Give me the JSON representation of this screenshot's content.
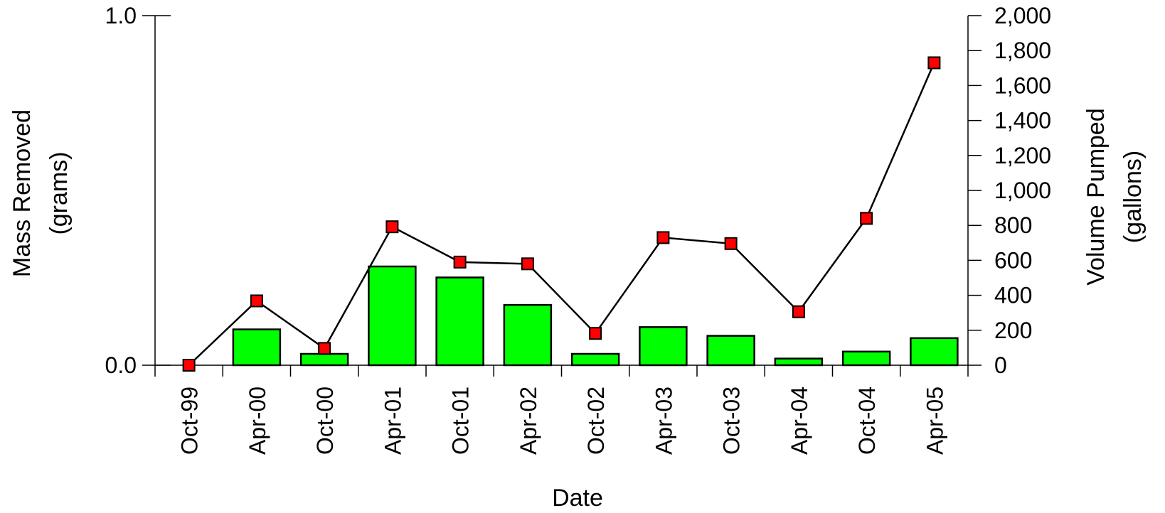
{
  "chart_data": {
    "type": "bar+line",
    "x_label": "Date",
    "categories": [
      "Oct-99",
      "Apr-00",
      "Oct-00",
      "Apr-01",
      "Oct-01",
      "Apr-02",
      "Oct-02",
      "Apr-03",
      "Oct-03",
      "Apr-04",
      "Oct-04",
      "Apr-05"
    ],
    "left_axis": {
      "label_line1": "Mass Removed",
      "label_line2": "(grams)",
      "range": [
        0,
        1
      ],
      "ticks": [
        0,
        1
      ],
      "tick_labels": [
        "0.0",
        "1.0"
      ]
    },
    "right_axis": {
      "label_line1": "Volume Pumped",
      "label_line2": "(gallons)",
      "range": [
        0,
        2000
      ],
      "ticks": [
        0,
        200,
        400,
        600,
        800,
        1000,
        1200,
        1400,
        1600,
        1800,
        2000
      ],
      "tick_labels": [
        "0",
        "200",
        "400",
        "600",
        "800",
        "1,000",
        "1,200",
        "1,400",
        "1,600",
        "1,800",
        "2,000"
      ]
    },
    "bar_series": {
      "axis": "right",
      "color": "#00ff00",
      "values": [
        0,
        205,
        65,
        565,
        502,
        345,
        65,
        218,
        168,
        38,
        78,
        155
      ]
    },
    "line_series": {
      "axis": "left",
      "marker_color": "#ff0000",
      "line_color": "#000000",
      "values": [
        0,
        0.184,
        0.048,
        0.396,
        0.295,
        0.29,
        0.091,
        0.365,
        0.348,
        0.153,
        0.42,
        0.865
      ]
    },
    "grid": false
  }
}
